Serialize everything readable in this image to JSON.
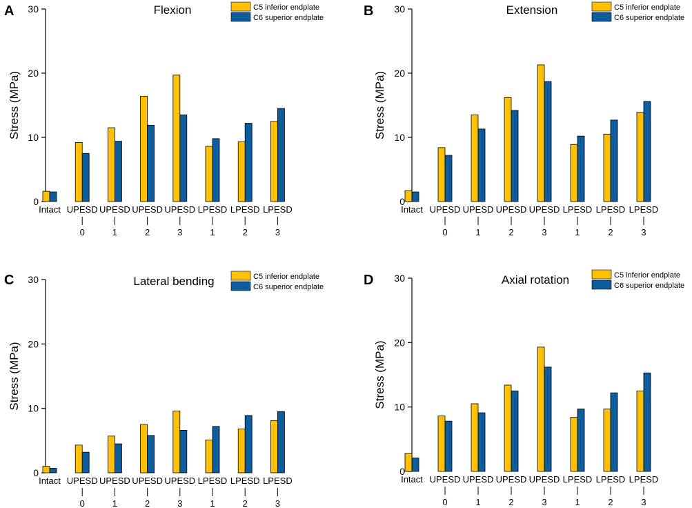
{
  "colors": {
    "c5": "#FFC107",
    "c6": "#0D5C9E",
    "axis": "#000000"
  },
  "chart_data": [
    {
      "type": "bar",
      "panel": "A",
      "title": "Flexion",
      "ylabel": "Stress (MPa)",
      "xlabel": "",
      "ylim": [
        0,
        30
      ],
      "yticks": [
        0,
        10,
        20,
        30
      ],
      "categories": [
        {
          "main": "Intact",
          "sub": ""
        },
        {
          "main": "UPESD",
          "sub": "0"
        },
        {
          "main": "UPESD",
          "sub": "1"
        },
        {
          "main": "UPESD",
          "sub": "2"
        },
        {
          "main": "UPESD",
          "sub": "3"
        },
        {
          "main": "LPESD",
          "sub": "1"
        },
        {
          "main": "LPESD",
          "sub": "2"
        },
        {
          "main": "LPESD",
          "sub": "3"
        }
      ],
      "series": [
        {
          "name": "C5 inferior endplate",
          "color": "#FFC107",
          "values": [
            1.6,
            9.2,
            11.5,
            16.4,
            19.7,
            8.6,
            9.3,
            12.5
          ]
        },
        {
          "name": "C6 superior endplate",
          "color": "#0D5C9E",
          "values": [
            1.5,
            7.5,
            9.4,
            11.9,
            13.5,
            9.8,
            12.2,
            14.5
          ]
        }
      ],
      "legend": "top-right"
    },
    {
      "type": "bar",
      "panel": "B",
      "title": "Extension",
      "ylabel": "Stress (MPa)",
      "xlabel": "",
      "ylim": [
        0,
        30
      ],
      "yticks": [
        0,
        10,
        20,
        30
      ],
      "categories": [
        {
          "main": "Intact",
          "sub": ""
        },
        {
          "main": "UPESD",
          "sub": "0"
        },
        {
          "main": "UPESD",
          "sub": "1"
        },
        {
          "main": "UPESD",
          "sub": "2"
        },
        {
          "main": "UPESD",
          "sub": "3"
        },
        {
          "main": "LPESD",
          "sub": "1"
        },
        {
          "main": "LPESD",
          "sub": "2"
        },
        {
          "main": "LPESD",
          "sub": "3"
        }
      ],
      "series": [
        {
          "name": "C5 inferior endplate",
          "color": "#FFC107",
          "values": [
            1.7,
            8.4,
            13.5,
            16.2,
            21.3,
            8.9,
            10.5,
            13.9
          ]
        },
        {
          "name": "C6 superior endplate",
          "color": "#0D5C9E",
          "values": [
            1.5,
            7.2,
            11.3,
            14.2,
            18.7,
            10.2,
            12.7,
            15.6
          ]
        }
      ],
      "legend": "top-right"
    },
    {
      "type": "bar",
      "panel": "C",
      "title": "Lateral bending",
      "ylabel": "Stress (MPa)",
      "xlabel": "",
      "ylim": [
        0,
        30
      ],
      "yticks": [
        0,
        10,
        20,
        30
      ],
      "categories": [
        {
          "main": "Intact",
          "sub": ""
        },
        {
          "main": "UPESD",
          "sub": "0"
        },
        {
          "main": "UPESD",
          "sub": "1"
        },
        {
          "main": "UPESD",
          "sub": "2"
        },
        {
          "main": "UPESD",
          "sub": "3"
        },
        {
          "main": "LPESD",
          "sub": "1"
        },
        {
          "main": "LPESD",
          "sub": "2"
        },
        {
          "main": "LPESD",
          "sub": "3"
        }
      ],
      "series": [
        {
          "name": "C5 inferior endplate",
          "color": "#FFC107",
          "values": [
            1.0,
            4.3,
            5.7,
            7.5,
            9.6,
            5.1,
            6.8,
            8.1
          ]
        },
        {
          "name": "C6 superior endplate",
          "color": "#0D5C9E",
          "values": [
            0.7,
            3.2,
            4.5,
            5.8,
            6.6,
            7.2,
            8.9,
            9.5
          ]
        }
      ],
      "legend": "top-right"
    },
    {
      "type": "bar",
      "panel": "D",
      "title": "Axial rotation",
      "ylabel": "Stress (MPa)",
      "xlabel": "",
      "ylim": [
        0,
        30
      ],
      "yticks": [
        0,
        10,
        20,
        30
      ],
      "categories": [
        {
          "main": "Intact",
          "sub": ""
        },
        {
          "main": "UPESD",
          "sub": "0"
        },
        {
          "main": "UPESD",
          "sub": "1"
        },
        {
          "main": "UPESD",
          "sub": "2"
        },
        {
          "main": "UPESD",
          "sub": "3"
        },
        {
          "main": "LPESD",
          "sub": "1"
        },
        {
          "main": "LPESD",
          "sub": "2"
        },
        {
          "main": "LPESD",
          "sub": "3"
        }
      ],
      "series": [
        {
          "name": "C5 inferior endplate",
          "color": "#FFC107",
          "values": [
            2.8,
            8.6,
            10.5,
            13.4,
            19.3,
            8.4,
            9.7,
            12.5
          ]
        },
        {
          "name": "C6 superior endplate",
          "color": "#0D5C9E",
          "values": [
            2.1,
            7.8,
            9.1,
            12.5,
            16.2,
            9.7,
            12.2,
            15.3
          ]
        }
      ],
      "legend": "top-right"
    }
  ]
}
